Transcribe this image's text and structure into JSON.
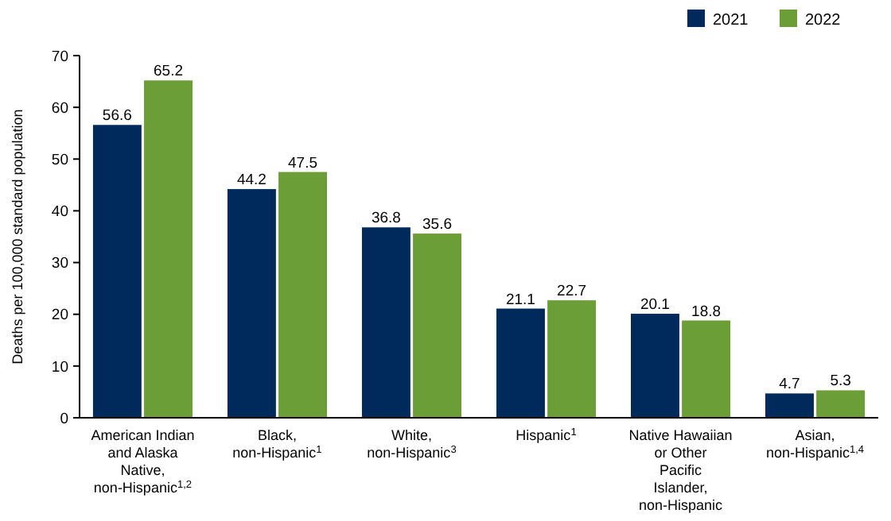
{
  "chart_data": {
    "type": "bar",
    "ylabel": "Deaths per 100,000 standard population",
    "categories": [
      "American Indian and Alaska Native, non-Hispanic$^{1,2}$",
      "Black, non-Hispanic$^{1}$",
      "White, non-Hispanic$^{3}$",
      "Hispanic$^{1}$",
      "Native Hawaiian or Other Pacific Islander, non-Hispanic",
      "Asian, non-Hispanic$^{1,4}$"
    ],
    "series": [
      {
        "name": "2021",
        "color": "#002a5c",
        "values": [
          56.6,
          44.2,
          36.8,
          21.1,
          20.1,
          4.7
        ]
      },
      {
        "name": "2022",
        "color": "#6c9e37",
        "values": [
          65.2,
          47.5,
          35.6,
          22.7,
          18.8,
          5.3
        ]
      }
    ],
    "ylim": [
      0,
      70
    ],
    "yticks": [
      0,
      10,
      20,
      30,
      40,
      50,
      60,
      70
    ],
    "grid": false,
    "legend": "top right",
    "data_labels": true
  }
}
